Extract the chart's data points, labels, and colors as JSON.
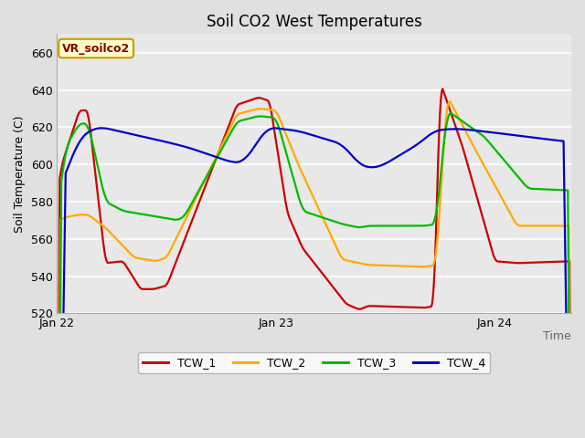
{
  "title": "Soil CO2 West Temperatures",
  "ylabel": "Soil Temperature (C)",
  "xlabel": "Time",
  "xlim": [
    0,
    2.35
  ],
  "ylim": [
    520,
    670
  ],
  "yticks": [
    520,
    540,
    560,
    580,
    600,
    620,
    640,
    660
  ],
  "xtick_positions": [
    0.0,
    1.0,
    2.0
  ],
  "xtick_labels": [
    "Jan 22",
    "Jan 23",
    "Jan 24"
  ],
  "bg_color": "#e0e0e0",
  "plot_bg_color": "#e8e8e8",
  "grid_color": "#ffffff",
  "colors": {
    "TCW_1": "#cc0000",
    "TCW_2": "#ffaa00",
    "TCW_3": "#00bb00",
    "TCW_4": "#0000cc"
  },
  "label_box": {
    "text": "VR_soilco2",
    "facecolor": "#ffffcc",
    "edgecolor": "#cc9900",
    "textcolor": "#880000"
  },
  "linewidth": 1.6
}
